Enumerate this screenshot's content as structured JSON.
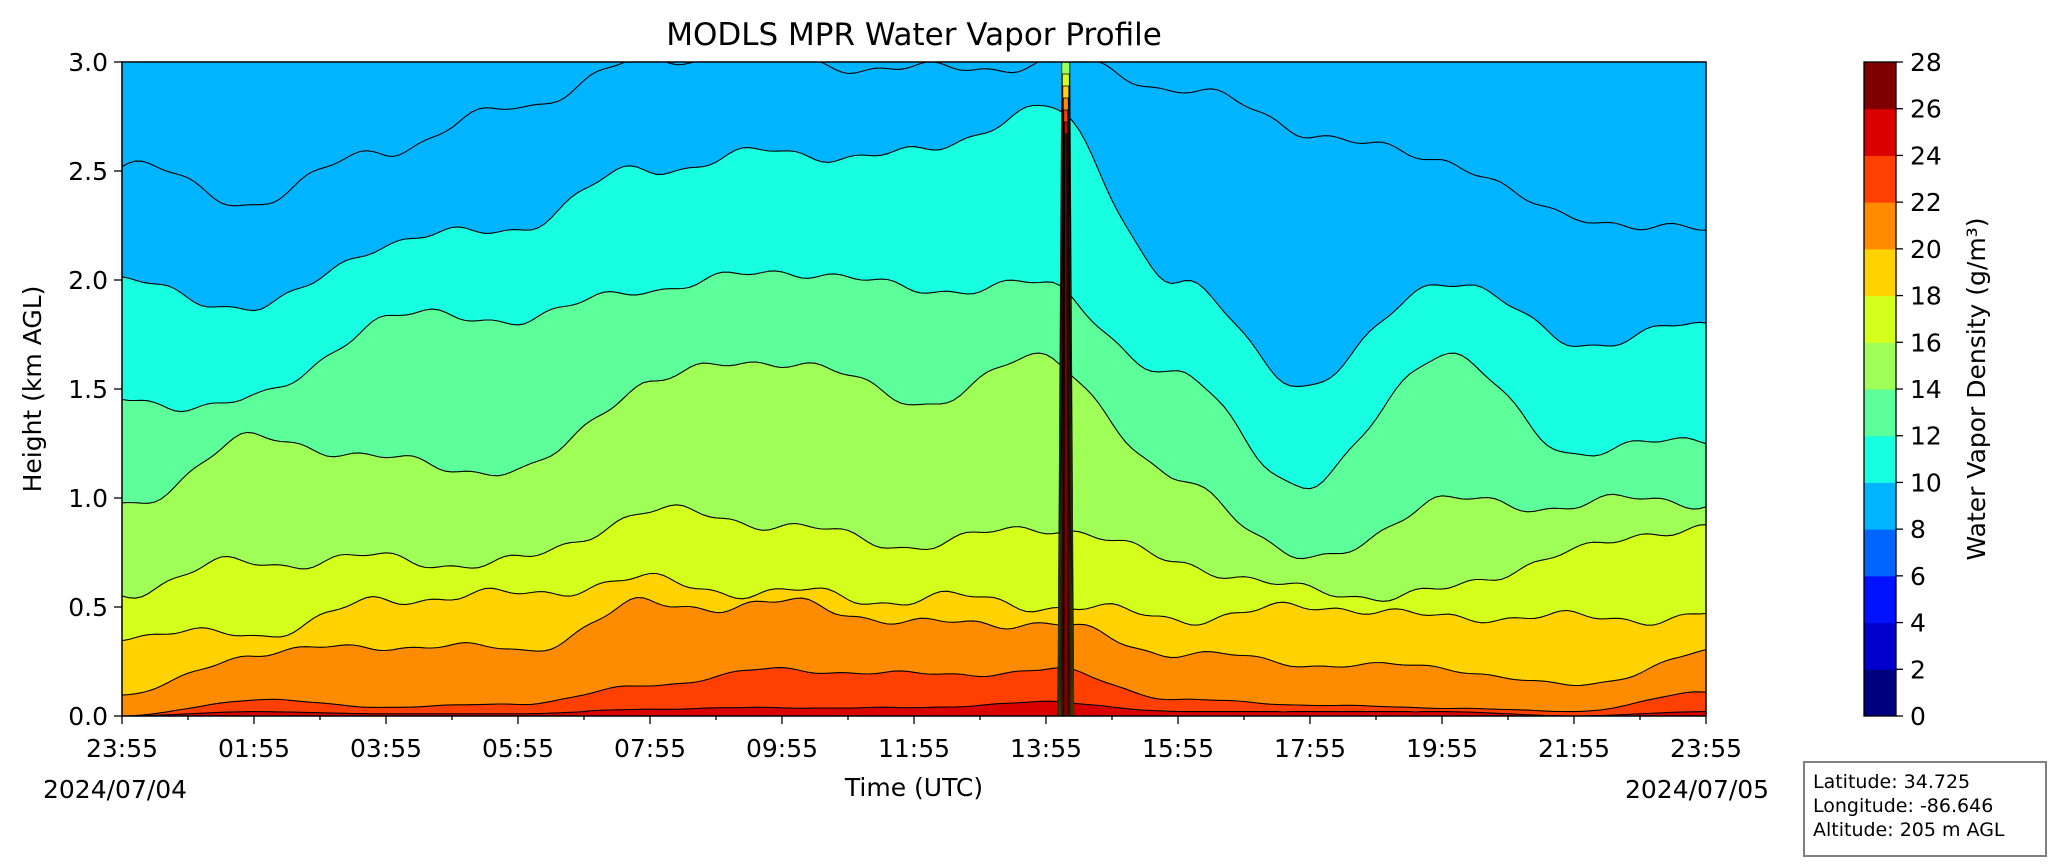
{
  "chart_data": {
    "type": "heatmap",
    "subtype": "filled-contour",
    "title": "MODLS MPR Water Vapor Profile",
    "xlabel": "Time (UTC)",
    "ylabel": "Height (km AGL)",
    "x_tick_labels": [
      "23:55",
      "01:55",
      "03:55",
      "05:55",
      "07:55",
      "09:55",
      "11:55",
      "13:55",
      "15:55",
      "17:55",
      "19:55",
      "21:55",
      "23:55"
    ],
    "x_hours": [
      0,
      2,
      4,
      6,
      8,
      10,
      12,
      14,
      16,
      18,
      20,
      22,
      24
    ],
    "xlim_hours": [
      0,
      24
    ],
    "start_date_label": "2024/07/04",
    "end_date_label": "2024/07/05",
    "ylim": [
      0.0,
      3.0
    ],
    "y_ticks": [
      0.0,
      0.5,
      1.0,
      1.5,
      2.0,
      2.5,
      3.0
    ],
    "y_tick_labels": [
      "0.0",
      "0.5",
      "1.0",
      "1.5",
      "2.0",
      "2.5",
      "3.0"
    ],
    "colorbar": {
      "label": "Water Vapor Density (g/m³)",
      "levels": [
        0,
        2,
        4,
        6,
        8,
        10,
        12,
        14,
        16,
        18,
        20,
        22,
        24,
        26,
        28
      ],
      "colors": [
        "#00007f",
        "#0000cc",
        "#0011ff",
        "#0064ff",
        "#00b4ff",
        "#17ffe0",
        "#5cff9a",
        "#a0ff57",
        "#d4ff1c",
        "#ffd200",
        "#ff8c00",
        "#ff4000",
        "#db0000",
        "#7f0000"
      ]
    },
    "contour_lines": [
      {
        "level": 6,
        "y": [
          2.52,
          2.32,
          2.62,
          2.83,
          2.98,
          3.0,
          3.0,
          3.0,
          2.85,
          2.7,
          2.58,
          2.25,
          2.2
        ]
      },
      {
        "level": 8,
        "y": [
          1.95,
          1.88,
          2.2,
          2.22,
          2.5,
          2.62,
          2.58,
          2.75,
          2.0,
          1.55,
          1.98,
          1.7,
          1.82
        ]
      },
      {
        "level": 10,
        "y": [
          1.45,
          1.48,
          1.8,
          1.8,
          2.0,
          2.05,
          1.92,
          1.98,
          1.58,
          1.02,
          1.65,
          1.25,
          1.28
        ]
      },
      {
        "level": 12,
        "y": [
          1.0,
          1.25,
          1.15,
          1.15,
          1.55,
          1.6,
          1.45,
          1.68,
          1.05,
          0.68,
          1.02,
          0.98,
          0.95
        ]
      },
      {
        "level": 14,
        "y": [
          0.55,
          0.68,
          0.75,
          0.72,
          0.9,
          0.88,
          0.82,
          0.85,
          0.68,
          0.6,
          0.58,
          0.72,
          0.88
        ]
      },
      {
        "level": 16,
        "y": [
          0.35,
          0.4,
          0.55,
          0.52,
          0.62,
          0.6,
          0.52,
          0.48,
          0.48,
          0.52,
          0.42,
          0.45,
          0.5
        ]
      },
      {
        "level": 18,
        "y": [
          0.1,
          0.3,
          0.3,
          0.3,
          0.55,
          0.5,
          0.4,
          0.45,
          0.3,
          0.22,
          0.22,
          0.15,
          0.28
        ]
      },
      {
        "level": 20,
        "y": [
          0.0,
          0.07,
          0.04,
          0.06,
          0.14,
          0.2,
          0.2,
          0.22,
          0.07,
          0.05,
          0.04,
          0.02,
          0.1
        ]
      },
      {
        "level": 22,
        "y": [
          0.0,
          0.02,
          0.01,
          0.01,
          0.03,
          0.04,
          0.04,
          0.06,
          0.02,
          0.02,
          0.02,
          0.0,
          0.02
        ]
      }
    ],
    "spike_event": {
      "time_hours": 14.3,
      "description_levels_to": 28
    }
  },
  "info_box": {
    "latitude": "Latitude: 34.725",
    "longitude": "Longitude: -86.646",
    "altitude": "Altitude: 205 m AGL"
  }
}
